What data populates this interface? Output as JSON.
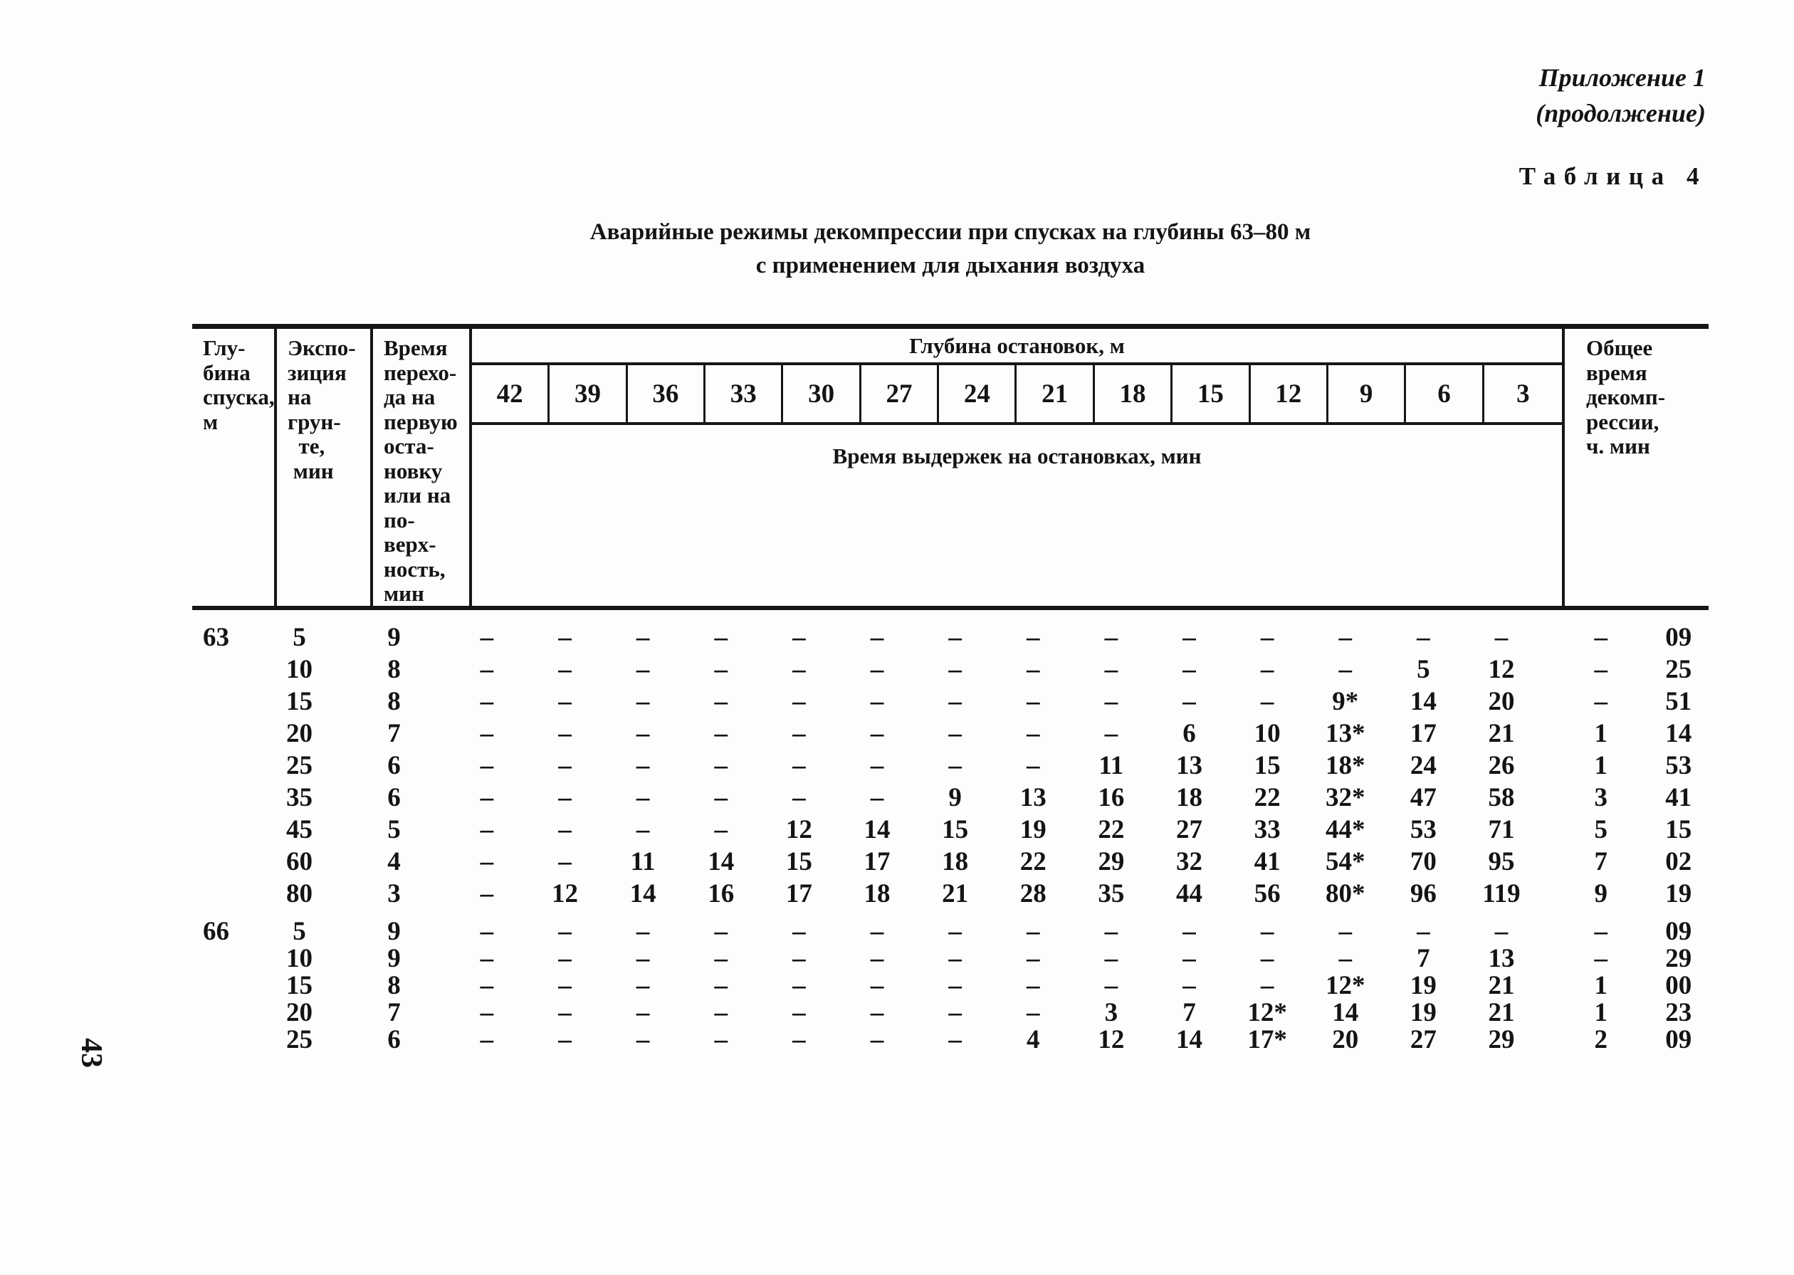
{
  "page": {
    "appendix": "Приложение 1",
    "appendix_cont": "(продолжение)",
    "table_label": "Таблица 4",
    "title_line1": "Аварийные режимы декомпрессии при спусках на глубины 63–80 м",
    "title_line2": "с применением для дыхания воздуха",
    "page_number": "43"
  },
  "table": {
    "headers": {
      "depth": "Глу-\nбина\nспуска,\nм",
      "exposure": "Экспо-\nзиция\nна\nгрун-\n  те,\n мин",
      "transfer": "Время\nперехо-\nда на\nпервую\nоста-\nновку\nили на\nпо-\nверх-\nность,\nмин",
      "stops_group": "Глубина остановок, м",
      "stops_sub": "Время выдержек на остановках, мин",
      "stop_depths": [
        "42",
        "39",
        "36",
        "33",
        "30",
        "27",
        "24",
        "21",
        "18",
        "15",
        "12",
        "9",
        "6",
        "3"
      ],
      "total": "Общее\nвремя\nдекомп-\nрессии,\nч. мин"
    },
    "rows_63": [
      {
        "depth": "63",
        "exp": "5",
        "t": "9",
        "s0": "–",
        "s1": "–",
        "s2": "–",
        "s3": "–",
        "s4": "–",
        "s5": "–",
        "s6": "–",
        "s7": "–",
        "s8": "–",
        "s9": "–",
        "s10": "–",
        "s11": "–",
        "s12": "–",
        "s13": "–",
        "h": "–",
        "m": "09"
      },
      {
        "depth": "",
        "exp": "10",
        "t": "8",
        "s0": "–",
        "s1": "–",
        "s2": "–",
        "s3": "–",
        "s4": "–",
        "s5": "–",
        "s6": "–",
        "s7": "–",
        "s8": "–",
        "s9": "–",
        "s10": "–",
        "s11": "–",
        "s12": "5",
        "s13": "12",
        "h": "–",
        "m": "25"
      },
      {
        "depth": "",
        "exp": "15",
        "t": "8",
        "s0": "–",
        "s1": "–",
        "s2": "–",
        "s3": "–",
        "s4": "–",
        "s5": "–",
        "s6": "–",
        "s7": "–",
        "s8": "–",
        "s9": "–",
        "s10": "–",
        "s11": "9*",
        "s12": "14",
        "s13": "20",
        "h": "–",
        "m": "51"
      },
      {
        "depth": "",
        "exp": "20",
        "t": "7",
        "s0": "–",
        "s1": "–",
        "s2": "–",
        "s3": "–",
        "s4": "–",
        "s5": "–",
        "s6": "–",
        "s7": "–",
        "s8": "–",
        "s9": "6",
        "s10": "10",
        "s11": "13*",
        "s12": "17",
        "s13": "21",
        "h": "1",
        "m": "14"
      },
      {
        "depth": "",
        "exp": "25",
        "t": "6",
        "s0": "–",
        "s1": "–",
        "s2": "–",
        "s3": "–",
        "s4": "–",
        "s5": "–",
        "s6": "–",
        "s7": "–",
        "s8": "11",
        "s9": "13",
        "s10": "15",
        "s11": "18*",
        "s12": "24",
        "s13": "26",
        "h": "1",
        "m": "53"
      },
      {
        "depth": "",
        "exp": "35",
        "t": "6",
        "s0": "–",
        "s1": "–",
        "s2": "–",
        "s3": "–",
        "s4": "–",
        "s5": "–",
        "s6": "9",
        "s7": "13",
        "s8": "16",
        "s9": "18",
        "s10": "22",
        "s11": "32*",
        "s12": "47",
        "s13": "58",
        "h": "3",
        "m": "41"
      },
      {
        "depth": "",
        "exp": "45",
        "t": "5",
        "s0": "–",
        "s1": "–",
        "s2": "–",
        "s3": "–",
        "s4": "12",
        "s5": "14",
        "s6": "15",
        "s7": "19",
        "s8": "22",
        "s9": "27",
        "s10": "33",
        "s11": "44*",
        "s12": "53",
        "s13": "71",
        "h": "5",
        "m": "15"
      },
      {
        "depth": "",
        "exp": "60",
        "t": "4",
        "s0": "–",
        "s1": "–",
        "s2": "11",
        "s3": "14",
        "s4": "15",
        "s5": "17",
        "s6": "18",
        "s7": "22",
        "s8": "29",
        "s9": "32",
        "s10": "41",
        "s11": "54*",
        "s12": "70",
        "s13": "95",
        "h": "7",
        "m": "02"
      },
      {
        "depth": "",
        "exp": "80",
        "t": "3",
        "s0": "–",
        "s1": "12",
        "s2": "14",
        "s3": "16",
        "s4": "17",
        "s5": "18",
        "s6": "21",
        "s7": "28",
        "s8": "35",
        "s9": "44",
        "s10": "56",
        "s11": "80*",
        "s12": "96",
        "s13": "119",
        "h": "9",
        "m": "19"
      }
    ],
    "rows_66": [
      {
        "depth": "66",
        "exp": "5",
        "t": "9",
        "s0": "–",
        "s1": "–",
        "s2": "–",
        "s3": "–",
        "s4": "–",
        "s5": "–",
        "s6": "–",
        "s7": "–",
        "s8": "–",
        "s9": "–",
        "s10": "–",
        "s11": "–",
        "s12": "–",
        "s13": "–",
        "h": "–",
        "m": "09"
      },
      {
        "depth": "",
        "exp": "10",
        "t": "9",
        "s0": "–",
        "s1": "–",
        "s2": "–",
        "s3": "–",
        "s4": "–",
        "s5": "–",
        "s6": "–",
        "s7": "–",
        "s8": "–",
        "s9": "–",
        "s10": "–",
        "s11": "–",
        "s12": "7",
        "s13": "13",
        "h": "–",
        "m": "29"
      },
      {
        "depth": "",
        "exp": "15",
        "t": "8",
        "s0": "–",
        "s1": "–",
        "s2": "–",
        "s3": "–",
        "s4": "–",
        "s5": "–",
        "s6": "–",
        "s7": "–",
        "s8": "–",
        "s9": "–",
        "s10": "–",
        "s11": "12*",
        "s12": "19",
        "s13": "21",
        "h": "1",
        "m": "00"
      },
      {
        "depth": "",
        "exp": "20",
        "t": "7",
        "s0": "–",
        "s1": "–",
        "s2": "–",
        "s3": "–",
        "s4": "–",
        "s5": "–",
        "s6": "–",
        "s7": "–",
        "s8": "3",
        "s9": "7",
        "s10": "12*",
        "s11": "14",
        "s12": "19",
        "s13": "21",
        "h": "1",
        "m": "23"
      },
      {
        "depth": "",
        "exp": "25",
        "t": "6",
        "s0": "–",
        "s1": "–",
        "s2": "–",
        "s3": "–",
        "s4": "–",
        "s5": "–",
        "s6": "–",
        "s7": "4",
        "s8": "12",
        "s9": "14",
        "s10": "17*",
        "s11": "20",
        "s12": "27",
        "s13": "29",
        "h": "2",
        "m": "09"
      }
    ]
  }
}
